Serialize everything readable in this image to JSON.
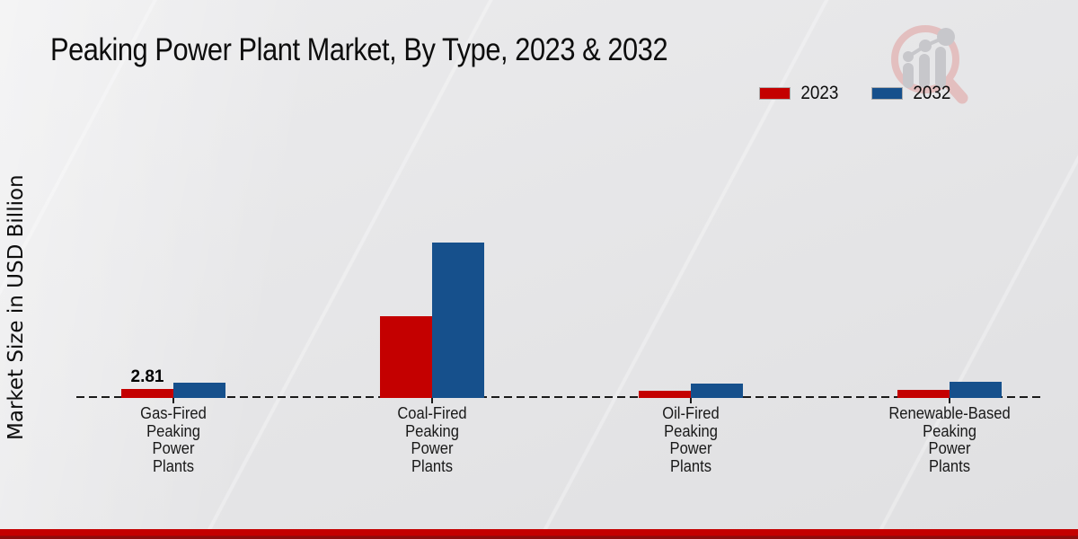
{
  "header": {
    "title": "Peaking Power Plant Market, By Type, 2023 & 2032"
  },
  "y_axis_label": "Market Size in USD Billion",
  "legend": {
    "items": [
      {
        "label": "2023",
        "color": "#c40000"
      },
      {
        "label": "2032",
        "color": "#16508c"
      }
    ]
  },
  "icons": {
    "logo": "magnifier-bar-chart-logo"
  },
  "colors": {
    "background": "#e7e7e9",
    "series_2023": "#c40000",
    "series_2032": "#16508c",
    "footer_bar": "#c40000",
    "baseline": "#1a1a1a"
  },
  "chart_data": {
    "type": "bar",
    "title": "Peaking Power Plant Market, By Type, 2023 & 2032",
    "ylabel": "Market Size in USD Billion",
    "xlabel": "",
    "categories": [
      "Gas-Fired Peaking Power Plants",
      "Coal-Fired Peaking Power Plants",
      "Oil-Fired Peaking Power Plants",
      "Renewable-Based Peaking Power Plants"
    ],
    "category_lines": [
      [
        "Gas-Fired",
        "Peaking",
        "Power",
        "Plants"
      ],
      [
        "Coal-Fired",
        "Peaking",
        "Power",
        "Plants"
      ],
      [
        "Oil-Fired",
        "Peaking",
        "Power",
        "Plants"
      ],
      [
        "Renewable-Based",
        "Peaking",
        "Power",
        "Plants"
      ]
    ],
    "series": [
      {
        "name": "2023",
        "color": "#c40000",
        "values": [
          2.81,
          26.9,
          2.4,
          2.6
        ]
      },
      {
        "name": "2032",
        "color": "#16508c",
        "values": [
          5.1,
          50.8,
          4.7,
          5.3
        ]
      }
    ],
    "annotations": [
      {
        "series": "2023",
        "category_index": 0,
        "text": "2.81"
      }
    ],
    "ylim": [
      0,
      55
    ],
    "y_axis_ticks_visible": false,
    "grid": false,
    "baseline_style": "dashed",
    "legend_position": "top-right"
  }
}
